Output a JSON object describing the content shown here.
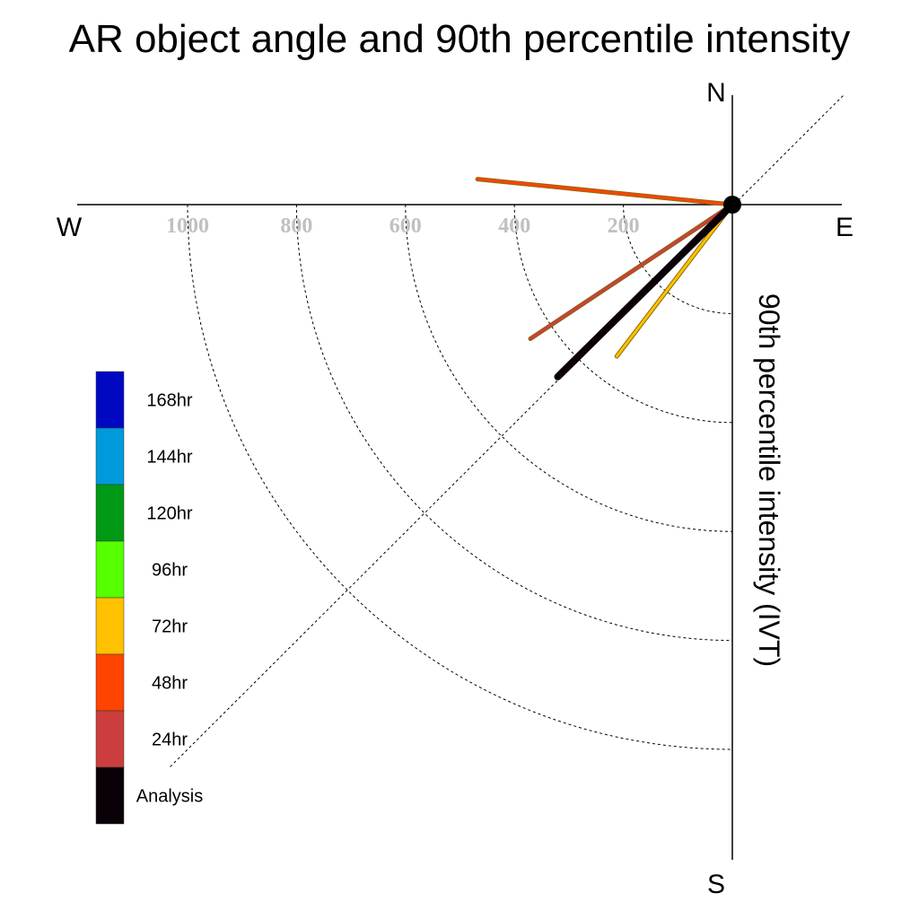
{
  "chart_data": {
    "type": "polar-vector",
    "title": "AR object angle and 90th percentile intensity",
    "axis_label": "90th percentile intensity (IVT)",
    "compass": {
      "north": "N",
      "south": "S",
      "east": "E",
      "west": "W"
    },
    "radial_ticks": [
      "200",
      "400",
      "600",
      "800",
      "1000"
    ],
    "radial_tick_values": [
      200,
      400,
      600,
      800,
      1000
    ],
    "radial_max": 1200,
    "grid": true,
    "series": [
      {
        "name": "48hr",
        "direction_deg": 275.7,
        "intensity": 470,
        "color": "#ff4400"
      },
      {
        "name": "24hr",
        "direction_deg": 236.4,
        "intensity": 445,
        "color": "#cc3e3e"
      },
      {
        "name": "72hr",
        "direction_deg": 217.3,
        "intensity": 350,
        "color": "#ffc100"
      },
      {
        "name": "Analysis",
        "direction_deg": 225.4,
        "intensity": 450,
        "color": "#0a0008"
      }
    ],
    "legend": {
      "placement": "left",
      "entries": [
        {
          "label": "168hr",
          "color": "#0009c1"
        },
        {
          "label": "144hr",
          "color": "#009adc"
        },
        {
          "label": "120hr",
          "color": "#009a16"
        },
        {
          "label": "96hr",
          "color": "#55ff00"
        },
        {
          "label": "72hr",
          "color": "#ffc100"
        },
        {
          "label": "48hr",
          "color": "#ff4400"
        },
        {
          "label": "24hr",
          "color": "#cc3e3e"
        },
        {
          "label": "Analysis",
          "color": "#0a0008"
        }
      ]
    }
  }
}
